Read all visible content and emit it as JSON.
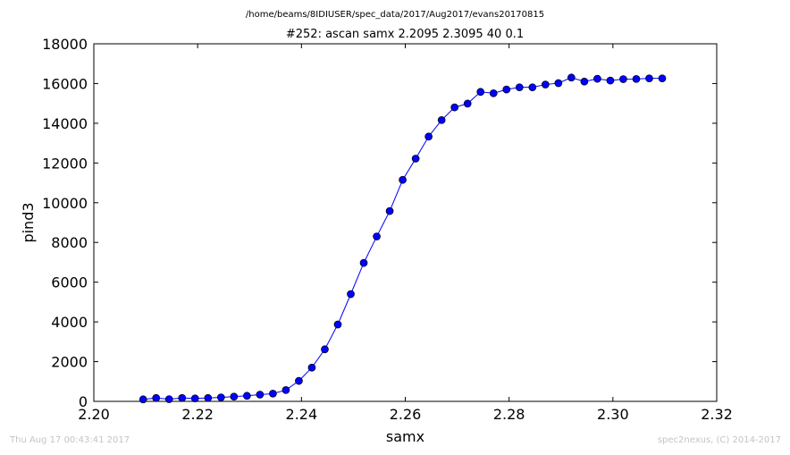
{
  "header": {
    "file_path": "/home/beams/8IDIUSER/spec_data/2017/Aug2017/evans20170815"
  },
  "footer": {
    "timestamp": "Thu Aug 17 00:43:41 2017",
    "credit": "spec2nexus, (C) 2014-2017"
  },
  "chart_data": {
    "type": "line",
    "title": "#252: ascan  samx 2.2095 2.3095  40 0.1",
    "xlabel": "samx",
    "ylabel": "pind3",
    "xlim": [
      2.2,
      2.32
    ],
    "ylim": [
      0,
      18000
    ],
    "xticks": [
      "2.20",
      "2.22",
      "2.24",
      "2.26",
      "2.28",
      "2.30",
      "2.32"
    ],
    "yticks": [
      "0",
      "2000",
      "4000",
      "6000",
      "8000",
      "10000",
      "12000",
      "14000",
      "16000",
      "18000"
    ],
    "grid": false,
    "legend": "none",
    "line_color": "#0000ff",
    "marker_color": "#0000ff",
    "x": [
      2.2095,
      2.212,
      2.2145,
      2.217,
      2.2195,
      2.222,
      2.2245,
      2.227,
      2.2295,
      2.232,
      2.2345,
      2.237,
      2.2395,
      2.242,
      2.2445,
      2.247,
      2.2495,
      2.252,
      2.2545,
      2.257,
      2.2595,
      2.262,
      2.2645,
      2.267,
      2.2695,
      2.272,
      2.2745,
      2.277,
      2.2795,
      2.282,
      2.2845,
      2.287,
      2.2895,
      2.292,
      2.2945,
      2.297,
      2.2995,
      2.302,
      2.3045,
      2.307,
      2.3095
    ],
    "y": [
      100,
      170,
      110,
      170,
      150,
      170,
      200,
      240,
      280,
      340,
      390,
      570,
      1030,
      1700,
      2620,
      3870,
      5400,
      6970,
      8300,
      9580,
      11150,
      12220,
      13330,
      14160,
      14800,
      14990,
      15580,
      15510,
      15700,
      15810,
      15810,
      15950,
      16020,
      16300,
      16100,
      16240,
      16150,
      16220,
      16230,
      16260,
      16260
    ]
  }
}
